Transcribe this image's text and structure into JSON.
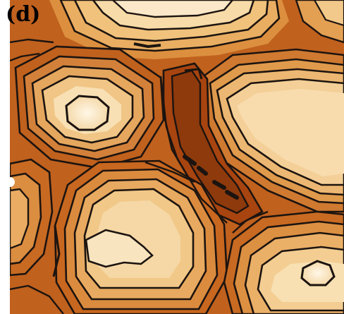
{
  "panel": {
    "label": "(d)"
  },
  "image": {
    "kind": "false-color contour map",
    "colors": {
      "background": "#ffffff",
      "deep": "#9a3d10",
      "dark": "#b9561a",
      "mid": "#d98a3c",
      "light": "#eab26c",
      "pale": "#f6d8a2",
      "peak": "#fdf0d6",
      "contour": "#1c1410"
    }
  }
}
